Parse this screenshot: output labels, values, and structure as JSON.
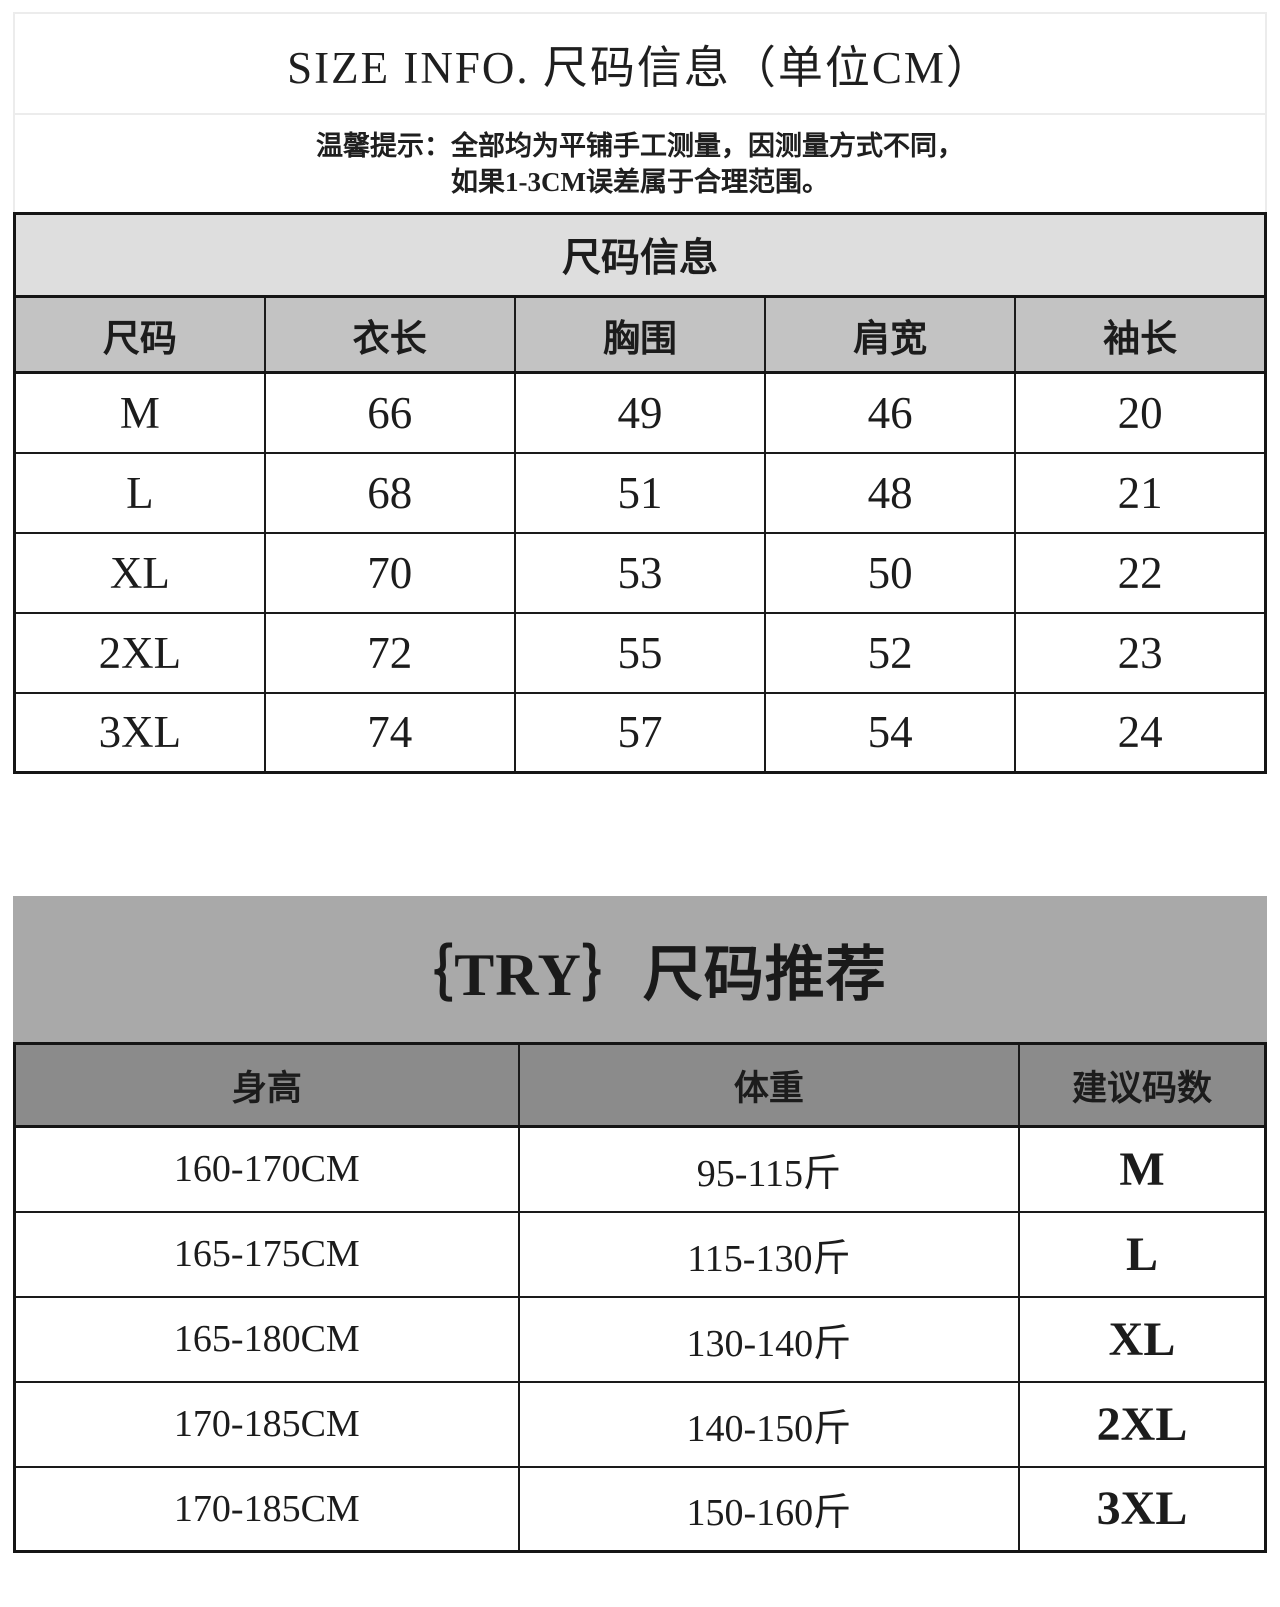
{
  "header": {
    "title": "SIZE INFO. 尺码信息（单位CM）",
    "tip_line1": "温馨提示：全部均为平铺手工测量，因测量方式不同，",
    "tip_line2": "如果1-3CM误差属于合理范围。"
  },
  "size_table": {
    "banner": "尺码信息",
    "columns": [
      "尺码",
      "衣长",
      "胸围",
      "肩宽",
      "袖长"
    ],
    "rows": [
      [
        "M",
        "66",
        "49",
        "46",
        "20"
      ],
      [
        "L",
        "68",
        "51",
        "48",
        "21"
      ],
      [
        "XL",
        "70",
        "53",
        "50",
        "22"
      ],
      [
        "2XL",
        "72",
        "55",
        "52",
        "23"
      ],
      [
        "3XL",
        "74",
        "57",
        "54",
        "24"
      ]
    ]
  },
  "recommend": {
    "banner": "｛TRY｝尺码推荐",
    "columns": [
      "身高",
      "体重",
      "建议码数"
    ],
    "rows": [
      [
        "160-170CM",
        "95-115斤",
        "M"
      ],
      [
        "165-175CM",
        "115-130斤",
        "L"
      ],
      [
        "165-180CM",
        "130-140斤",
        "XL"
      ],
      [
        "170-185CM",
        "140-150斤",
        "2XL"
      ],
      [
        "170-185CM",
        "150-160斤",
        "3XL"
      ]
    ]
  },
  "colors": {
    "size_banner_bg": "#dedede",
    "size_header_bg": "#c3c3c3",
    "try_banner_bg": "#a9a9a9",
    "recommend_header_bg": "#8b8b8b",
    "table_border": "#1a1a1a",
    "header_box_border": "#ececec",
    "text": "#1c1c1c",
    "page_bg": "#ffffff"
  }
}
